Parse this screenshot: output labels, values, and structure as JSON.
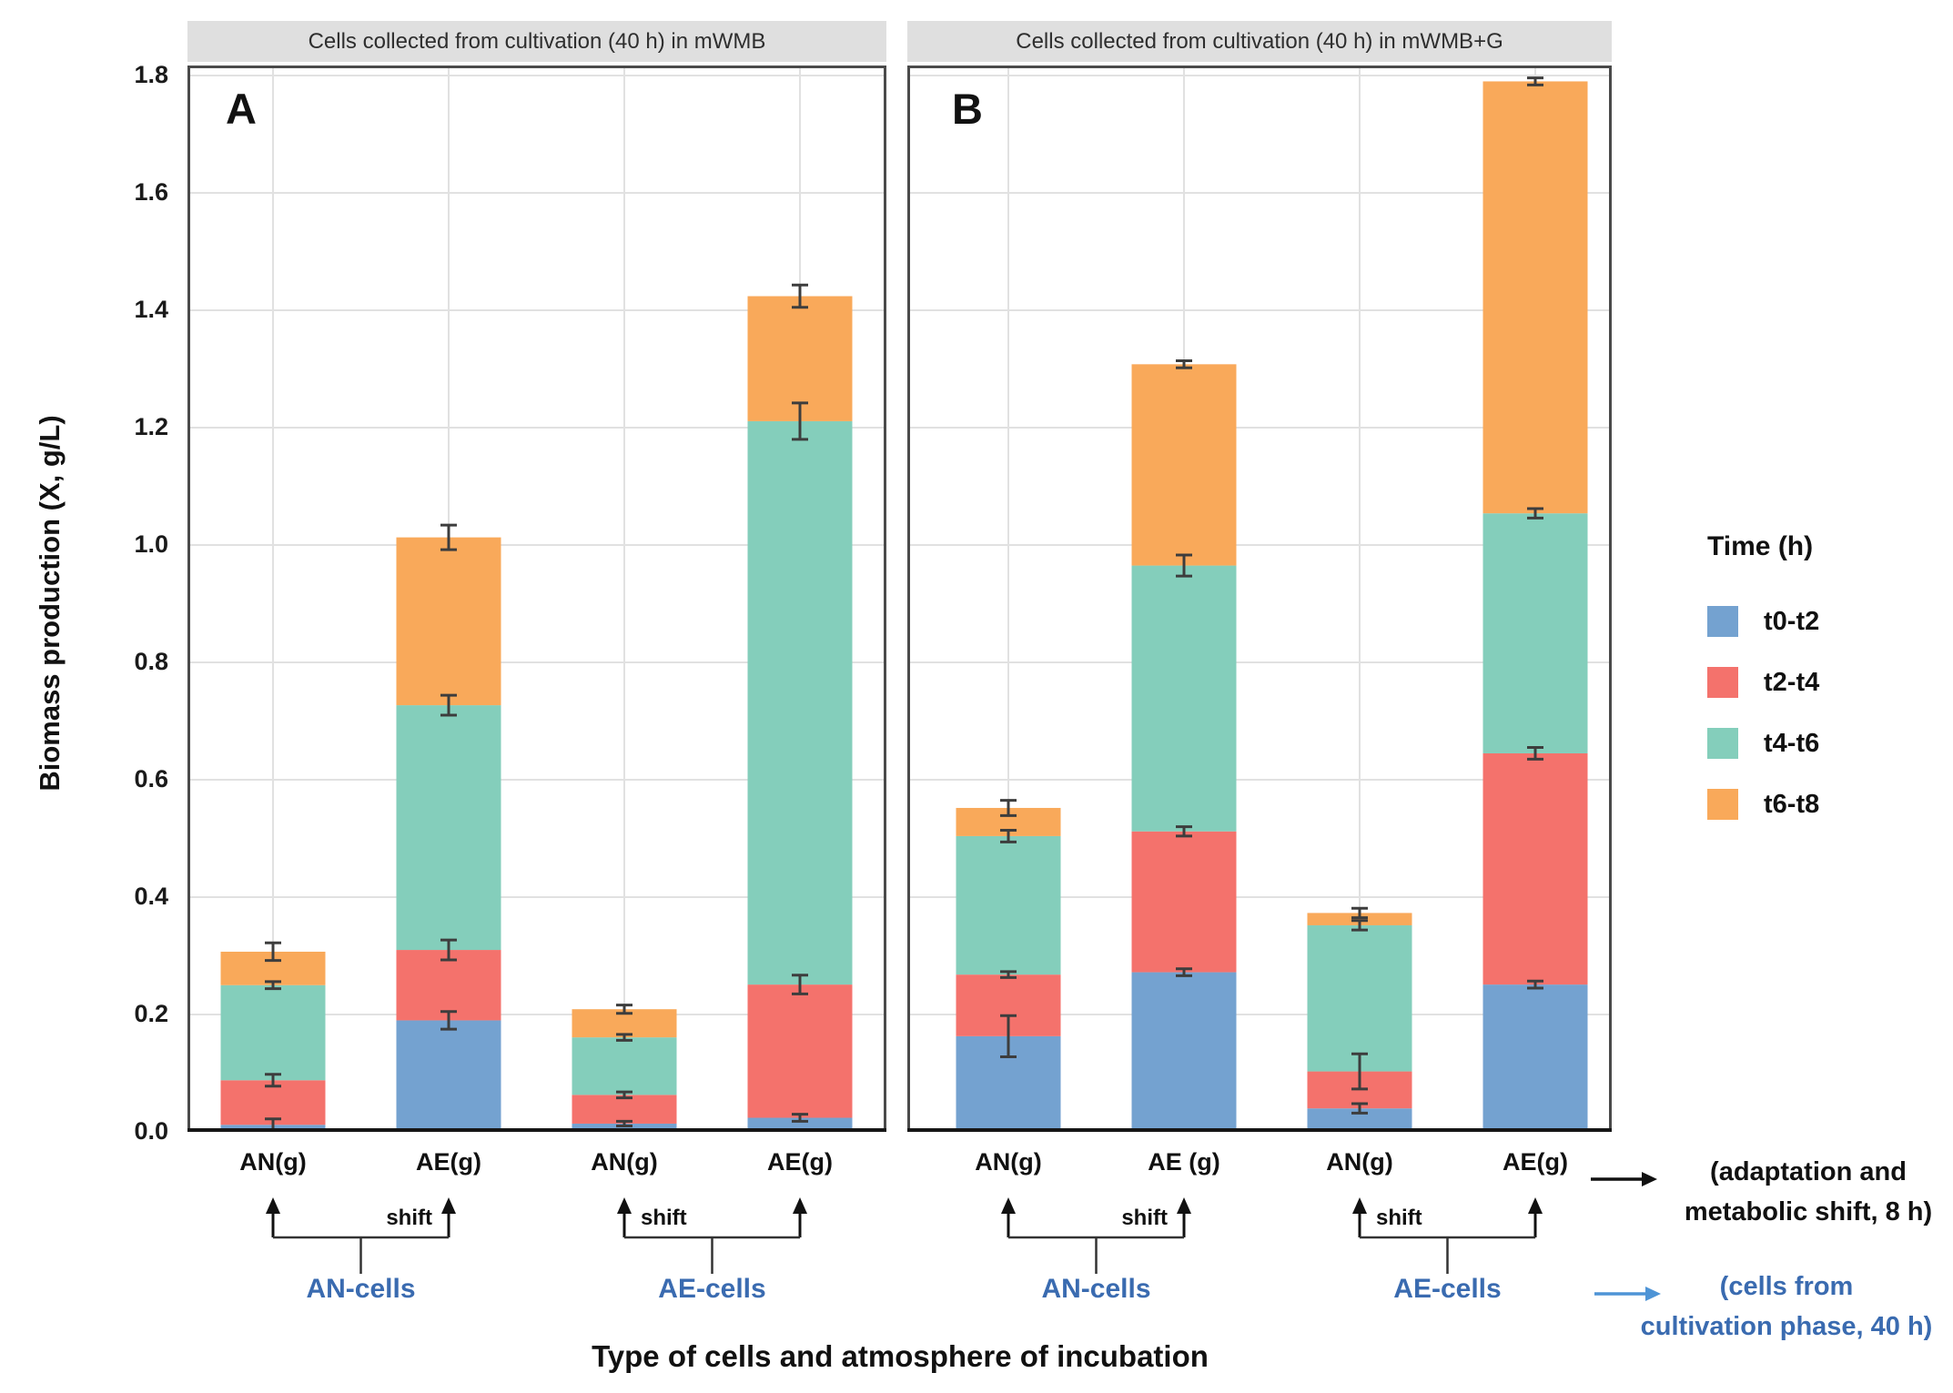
{
  "chart_data": {
    "type": "bar",
    "stacked": true,
    "title": "",
    "xlabel": "Type of cells and atmosphere of incubation",
    "ylabel": "Biomass production (X, g/L)",
    "ylim": [
      0,
      1.82
    ],
    "yticks": [
      0.0,
      0.2,
      0.4,
      0.6,
      0.8,
      1.0,
      1.2,
      1.4,
      1.6,
      1.8
    ],
    "grid": true,
    "legend_position": "right",
    "series_labels": [
      "t0-t2",
      "t2-t4",
      "t4-t6",
      "t6-t8"
    ],
    "panels": [
      {
        "label": "A",
        "title": "Cells collected from cultivation (40 h) in mWMB",
        "categories": [
          "AN(g)",
          "AE(g)",
          "AN(g)",
          "AE(g)"
        ],
        "bars": [
          {
            "values": [
              0.012,
              0.076,
              0.162,
              0.057
            ],
            "errors": [
              0.01,
              0.01,
              0.006,
              0.015
            ]
          },
          {
            "values": [
              0.19,
              0.12,
              0.417,
              0.286
            ],
            "errors": [
              0.015,
              0.017,
              0.017,
              0.021
            ]
          },
          {
            "values": [
              0.014,
              0.049,
              0.098,
              0.048
            ],
            "errors": [
              0.004,
              0.005,
              0.005,
              0.007
            ]
          },
          {
            "values": [
              0.024,
              0.227,
              0.96,
              0.213
            ],
            "errors": [
              0.006,
              0.016,
              0.031,
              0.019
            ]
          }
        ],
        "groups": [
          {
            "label": "AN-cells",
            "shift_word_near": "second"
          },
          {
            "label": "AE-cells",
            "shift_word_near": "first"
          }
        ]
      },
      {
        "label": "B",
        "title": "Cells collected from cultivation (40 h) in mWMB+G",
        "categories": [
          "AN(g)",
          "AE (g)",
          "AN(g)",
          "AE(g)"
        ],
        "bars": [
          {
            "values": [
              0.163,
              0.105,
              0.236,
              0.048
            ],
            "errors": [
              0.035,
              0.005,
              0.01,
              0.013
            ]
          },
          {
            "values": [
              0.272,
              0.24,
              0.453,
              0.343
            ],
            "errors": [
              0.006,
              0.008,
              0.018,
              0.006
            ]
          },
          {
            "values": [
              0.04,
              0.063,
              0.249,
              0.021
            ],
            "errors": [
              0.008,
              0.03,
              0.008,
              0.008
            ]
          },
          {
            "values": [
              0.251,
              0.394,
              0.409,
              0.736
            ],
            "errors": [
              0.006,
              0.01,
              0.008,
              0.006
            ]
          }
        ],
        "groups": [
          {
            "label": "AN-cells",
            "shift_word_near": "second"
          },
          {
            "label": "AE-cells",
            "shift_word_near": "first"
          }
        ]
      }
    ]
  },
  "legend": {
    "title": "Time (h)",
    "items": [
      {
        "label": "t0-t2",
        "color": "#74A2D0"
      },
      {
        "label": "t2-t4",
        "color": "#F4726C"
      },
      {
        "label": "t4-t6",
        "color": "#84CEBB"
      },
      {
        "label": "t6-t8",
        "color": "#F9A95A"
      }
    ]
  },
  "annotations": {
    "shift_label": "shift",
    "adaptation": [
      "(adaptation and",
      "metabolic shift, 8 h)"
    ],
    "cells_from": [
      "(cells from",
      "cultivation phase, 40 h)"
    ]
  },
  "colors": {
    "annotation_blue": "#3A6BB0",
    "arrow_blue": "#4E94D6",
    "strip_bg": "#DFDFDF",
    "gridline": "#E1E1E1",
    "plot_border": "#4A4A4A",
    "baseline": "#161616",
    "error_bar": "#3D3D3D"
  }
}
